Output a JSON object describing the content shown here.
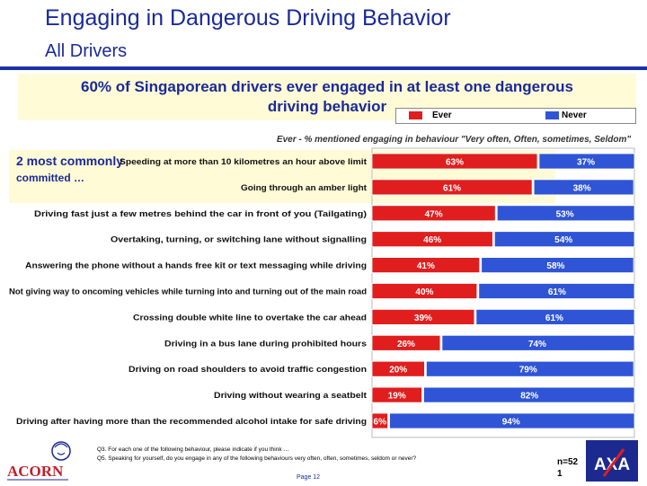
{
  "header": {
    "title": "Engaging in Dangerous Driving Behavior",
    "subtitle": "All Drivers"
  },
  "headline": {
    "line1": "60% of Singaporean drivers ever engaged in at least one dangerous",
    "line2": "driving behavior"
  },
  "callout": {
    "line1": "2 most commonly",
    "line2": "committed …"
  },
  "colors": {
    "ever": "#e01e1e",
    "never": "#2f55d6",
    "title": "#1a2a9a"
  },
  "chart_data": {
    "type": "bar",
    "orientation": "horizontal-stacked-100",
    "title": "Ever - % mentioned engaging in behaviour \"Very often, Often, sometimes, Seldom\"",
    "legend": {
      "position": "top-right",
      "ever": "Ever",
      "never": "Never"
    },
    "categories": [
      "Speeding at more than 10 kilometres an hour above limit",
      "Going through an amber light",
      "Driving fast just a few metres behind the car in front of you (Tailgating)",
      "Overtaking, turning, or switching lane without signalling",
      "Answering the phone without a hands free kit or text messaging while driving",
      "Not giving way to oncoming vehicles while turning into and turning out of the main road",
      "Crossing double white line to overtake the car ahead",
      "Driving in a bus lane during prohibited hours",
      "Driving on road shoulders to avoid traffic congestion",
      "Driving without wearing a seatbelt",
      "Driving after having more than the recommended alcohol intake for safe driving"
    ],
    "series": [
      {
        "name": "Ever",
        "values": [
          63,
          61,
          47,
          46,
          41,
          40,
          39,
          26,
          20,
          19,
          6
        ]
      },
      {
        "name": "Never",
        "values": [
          37,
          38,
          53,
          54,
          58,
          61,
          61,
          74,
          79,
          82,
          94
        ]
      }
    ],
    "unit": "%",
    "xlim": [
      0,
      100
    ]
  },
  "footer": {
    "note1": "Q3. For each one of the following behaviour, please indicate if you think …",
    "note2": "Q5. Speaking for yourself, do you engage in any of the following behaviours very often, often, sometimes, seldom or never?",
    "page": "Page 12",
    "n_label": "n=52",
    "n_line2": "1",
    "acorn_logo": "ACORN",
    "axa_logo": "AXA"
  }
}
